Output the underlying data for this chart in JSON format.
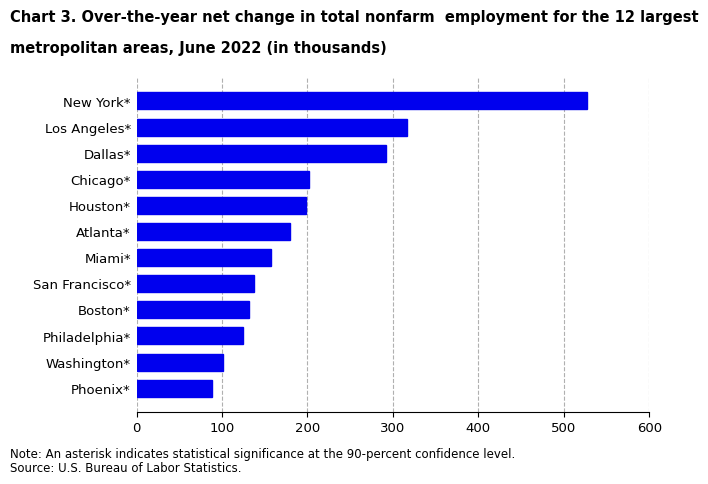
{
  "title_line1": "Chart 3. Over-the-year net change in total nonfarm  employment for the 12 largest",
  "title_line2": "metropolitan areas, June 2022 (in thousands)",
  "categories": [
    "Phoenix*",
    "Washington*",
    "Philadelphia*",
    "Boston*",
    "San Francisco*",
    "Miami*",
    "Atlanta*",
    "Houston*",
    "Chicago*",
    "Dallas*",
    "Los Angeles*",
    "New York*"
  ],
  "values": [
    88,
    101,
    124,
    132,
    138,
    157,
    180,
    198,
    202,
    292,
    316,
    527
  ],
  "bar_color": "#0000ee",
  "xlim": [
    0,
    600
  ],
  "xticks": [
    0,
    100,
    200,
    300,
    400,
    500,
    600
  ],
  "grid_color": "#b0b0b0",
  "note_line1": "Note: An asterisk indicates statistical significance at the 90-percent confidence level.",
  "note_line2": "Source: U.S. Bureau of Labor Statistics.",
  "background_color": "#ffffff",
  "title_fontsize": 10.5,
  "label_fontsize": 9.5,
  "tick_fontsize": 9.5,
  "note_fontsize": 8.5
}
